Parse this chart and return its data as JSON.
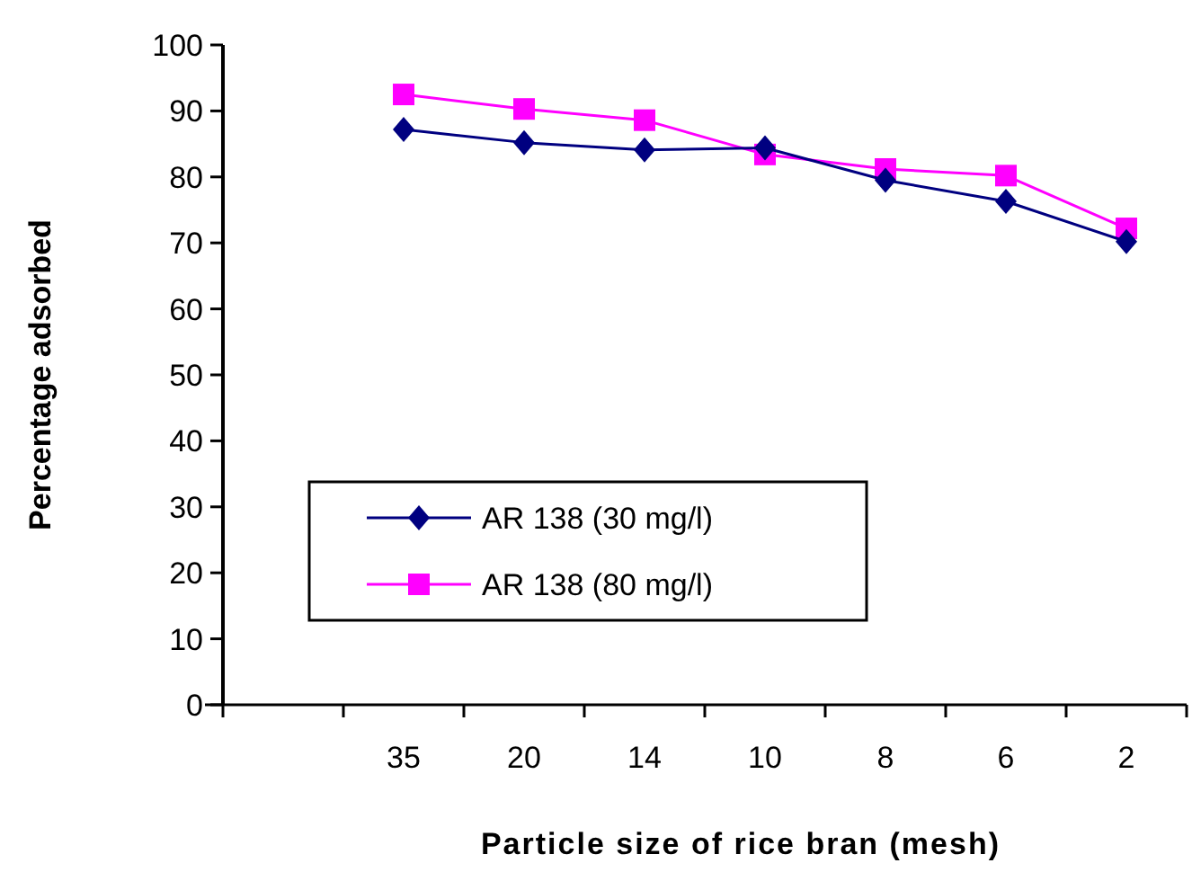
{
  "chart_data": {
    "type": "line",
    "xlabel": "Particle size of rice bran (mesh)",
    "ylabel": "Percentage adsorbed",
    "categories": [
      null,
      "35",
      "20",
      "14",
      "10",
      "8",
      "6",
      "2"
    ],
    "ylim": [
      0,
      100
    ],
    "yticks": [
      0,
      10,
      20,
      30,
      40,
      50,
      60,
      70,
      80,
      90,
      100
    ],
    "grid": false,
    "legend": "bottom left",
    "series": [
      {
        "name": "AR 138 (30 mg/l)",
        "color": "#000080",
        "marker": "diamond",
        "values": [
          null,
          87.2,
          85.2,
          84.1,
          84.4,
          79.5,
          76.3,
          70.2
        ]
      },
      {
        "name": "AR 138 (80 mg/l)",
        "color": "#ff00ff",
        "marker": "square",
        "values": [
          null,
          92.5,
          90.3,
          88.6,
          83.4,
          81.2,
          80.2,
          72.2
        ]
      }
    ]
  }
}
